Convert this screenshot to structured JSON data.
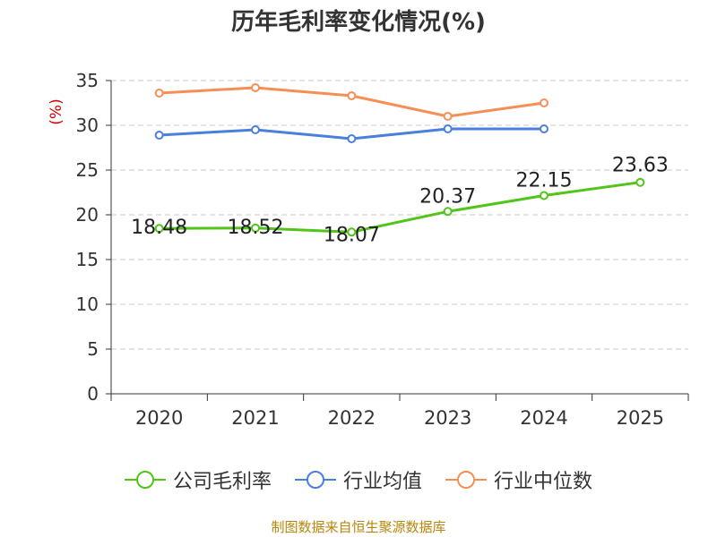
{
  "chart_data": {
    "type": "line",
    "title": "历年毛利率变化情况(%)",
    "ylabel": "(%)",
    "xlabel": "",
    "categories": [
      "2020",
      "2021",
      "2022",
      "2023",
      "2024",
      "2025"
    ],
    "ylim": [
      0,
      35
    ],
    "yticks": [
      0,
      5,
      10,
      15,
      20,
      25,
      30,
      35
    ],
    "grid": true,
    "legend_position": "bottom",
    "series": [
      {
        "name": "公司毛利率",
        "color": "#52c41a",
        "values": [
          18.48,
          18.52,
          18.07,
          20.37,
          22.15,
          23.63
        ],
        "labels": [
          "18.48",
          "18.52",
          "18.07",
          "20.37",
          "22.15",
          "23.63"
        ]
      },
      {
        "name": "行业均值",
        "color": "#4a7fdc",
        "values": [
          28.9,
          29.5,
          28.5,
          29.6,
          29.6,
          null
        ]
      },
      {
        "name": "行业中位数",
        "color": "#f68e55",
        "values": [
          33.6,
          34.2,
          33.3,
          31.0,
          32.5,
          null
        ]
      }
    ]
  },
  "source": "制图数据来自恒生聚源数据库"
}
